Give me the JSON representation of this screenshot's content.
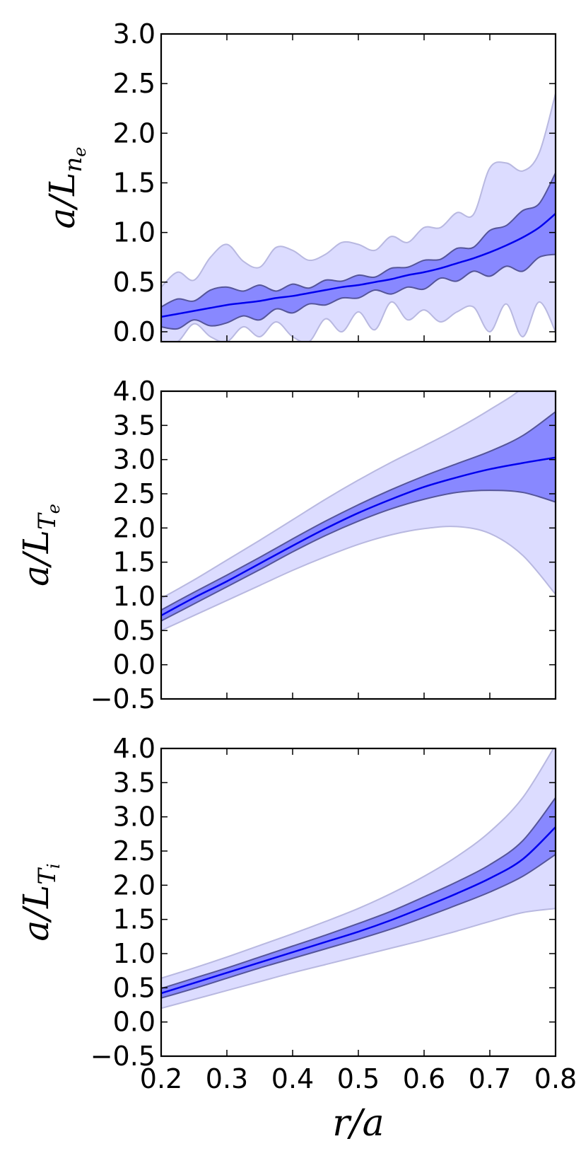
{
  "chart_data": [
    {
      "type": "area",
      "ylabel": "a/L_{n_e}",
      "ylim": [
        -0.1,
        3.0
      ],
      "xlim": [
        0.2,
        0.8
      ],
      "yticks": [
        "3.0",
        "2.5",
        "2.0",
        "1.5",
        "1.0",
        "0.5",
        "0.0"
      ],
      "ytick_values": [
        3.0,
        2.5,
        2.0,
        1.5,
        1.0,
        0.5,
        0.0
      ],
      "x": [
        0.2,
        0.225,
        0.25,
        0.275,
        0.3,
        0.325,
        0.35,
        0.375,
        0.4,
        0.425,
        0.45,
        0.475,
        0.5,
        0.525,
        0.55,
        0.575,
        0.6,
        0.625,
        0.65,
        0.675,
        0.7,
        0.725,
        0.75,
        0.775,
        0.8
      ],
      "mean": [
        0.15,
        0.18,
        0.21,
        0.24,
        0.27,
        0.29,
        0.31,
        0.34,
        0.36,
        0.39,
        0.42,
        0.45,
        0.47,
        0.5,
        0.53,
        0.57,
        0.6,
        0.64,
        0.69,
        0.74,
        0.8,
        0.87,
        0.95,
        1.05,
        1.19
      ],
      "band_1sigma": {
        "upper": [
          0.25,
          0.33,
          0.31,
          0.42,
          0.45,
          0.41,
          0.47,
          0.41,
          0.48,
          0.44,
          0.52,
          0.51,
          0.57,
          0.55,
          0.64,
          0.65,
          0.72,
          0.73,
          0.84,
          0.85,
          1.02,
          1.07,
          1.22,
          1.29,
          1.6
        ],
        "lower": [
          0.05,
          0.03,
          0.12,
          0.06,
          0.09,
          0.16,
          0.12,
          0.23,
          0.19,
          0.28,
          0.27,
          0.34,
          0.34,
          0.42,
          0.38,
          0.45,
          0.43,
          0.54,
          0.51,
          0.61,
          0.56,
          0.66,
          0.61,
          0.75,
          0.78
        ]
      },
      "band_2sigma": {
        "upper": [
          0.45,
          0.6,
          0.52,
          0.75,
          0.88,
          0.71,
          0.65,
          0.85,
          0.82,
          0.72,
          0.78,
          0.9,
          0.88,
          0.82,
          0.96,
          0.9,
          1.05,
          1.05,
          1.2,
          1.18,
          1.65,
          1.7,
          1.62,
          1.8,
          2.4
        ],
        "lower": [
          -0.1,
          -0.1,
          0.08,
          -0.05,
          -0.1,
          0.05,
          -0.05,
          0.1,
          -0.05,
          -0.1,
          0.13,
          0.0,
          0.2,
          0.02,
          0.3,
          0.12,
          0.22,
          0.1,
          0.2,
          0.25,
          0.0,
          0.28,
          -0.05,
          0.3,
          0.0
        ]
      }
    },
    {
      "type": "area",
      "ylabel": "a/L_{T_e}",
      "ylim": [
        -0.5,
        4.0
      ],
      "xlim": [
        0.2,
        0.8
      ],
      "yticks": [
        "4.0",
        "3.5",
        "3.0",
        "2.5",
        "2.0",
        "1.5",
        "1.0",
        "0.5",
        "0.0",
        "−0.5"
      ],
      "ytick_values": [
        4.0,
        3.5,
        3.0,
        2.5,
        2.0,
        1.5,
        1.0,
        0.5,
        0.0,
        -0.5
      ],
      "x": [
        0.2,
        0.25,
        0.3,
        0.35,
        0.4,
        0.45,
        0.5,
        0.55,
        0.6,
        0.65,
        0.7,
        0.75,
        0.8
      ],
      "mean": [
        0.72,
        0.98,
        1.22,
        1.48,
        1.74,
        1.99,
        2.22,
        2.42,
        2.6,
        2.74,
        2.86,
        2.95,
        3.03
      ],
      "band_1sigma": {
        "upper": [
          0.8,
          1.06,
          1.31,
          1.57,
          1.84,
          2.1,
          2.34,
          2.56,
          2.76,
          2.94,
          3.12,
          3.35,
          3.7
        ],
        "lower": [
          0.64,
          0.89,
          1.14,
          1.39,
          1.65,
          1.89,
          2.1,
          2.28,
          2.42,
          2.52,
          2.55,
          2.52,
          2.38
        ]
      },
      "band_2sigma": {
        "upper": [
          0.97,
          1.24,
          1.53,
          1.82,
          2.12,
          2.42,
          2.7,
          2.96,
          3.2,
          3.45,
          3.73,
          4.05,
          4.55
        ],
        "lower": [
          0.5,
          0.72,
          0.94,
          1.16,
          1.38,
          1.58,
          1.76,
          1.9,
          1.99,
          2.02,
          1.92,
          1.6,
          1.03
        ]
      }
    },
    {
      "type": "area",
      "ylabel": "a/L_{T_i}",
      "xlabel": "r/a",
      "ylim": [
        -0.5,
        4.0
      ],
      "xlim": [
        0.2,
        0.8
      ],
      "yticks": [
        "4.0",
        "3.5",
        "3.0",
        "2.5",
        "2.0",
        "1.5",
        "1.0",
        "0.5",
        "0.0",
        "−0.5"
      ],
      "ytick_values": [
        4.0,
        3.5,
        3.0,
        2.5,
        2.0,
        1.5,
        1.0,
        0.5,
        0.0,
        -0.5
      ],
      "xticks": [
        "0.2",
        "0.3",
        "0.4",
        "0.5",
        "0.6",
        "0.7",
        "0.8"
      ],
      "xtick_values": [
        0.2,
        0.3,
        0.4,
        0.5,
        0.6,
        0.7,
        0.8
      ],
      "x": [
        0.2,
        0.25,
        0.3,
        0.35,
        0.4,
        0.45,
        0.5,
        0.55,
        0.6,
        0.65,
        0.7,
        0.75,
        0.8
      ],
      "mean": [
        0.42,
        0.57,
        0.72,
        0.87,
        1.02,
        1.17,
        1.32,
        1.49,
        1.68,
        1.88,
        2.1,
        2.38,
        2.85
      ],
      "band_1sigma": {
        "upper": [
          0.49,
          0.64,
          0.79,
          0.95,
          1.11,
          1.27,
          1.44,
          1.62,
          1.83,
          2.05,
          2.3,
          2.65,
          3.28
        ],
        "lower": [
          0.35,
          0.49,
          0.64,
          0.79,
          0.93,
          1.07,
          1.21,
          1.36,
          1.53,
          1.71,
          1.9,
          2.13,
          2.45
        ]
      },
      "band_2sigma": {
        "upper": [
          0.64,
          0.79,
          0.95,
          1.12,
          1.29,
          1.47,
          1.66,
          1.88,
          2.13,
          2.42,
          2.78,
          3.28,
          4.05
        ],
        "lower": [
          0.2,
          0.33,
          0.46,
          0.59,
          0.72,
          0.84,
          0.96,
          1.08,
          1.2,
          1.33,
          1.47,
          1.6,
          1.66
        ]
      }
    }
  ],
  "colors": {
    "mean_line": "#0000ee",
    "band_1sigma_fill": "#8888ff",
    "band_2sigma_fill": "#dcdcff",
    "band_1sigma_edge": "#555599",
    "band_2sigma_edge": "#b8b8e0"
  }
}
